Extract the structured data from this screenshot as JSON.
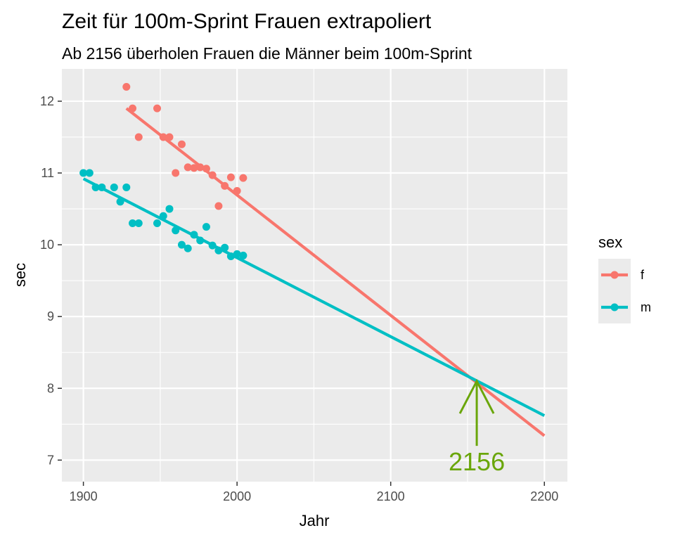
{
  "chart_data": {
    "type": "scatter",
    "title": "Zeit für 100m-Sprint Frauen extrapoliert",
    "subtitle": "Ab 2156 überholen Frauen die Männer beim 100m-Sprint",
    "xlabel": "Jahr",
    "ylabel": "sec",
    "xlim": [
      1886,
      2215
    ],
    "ylim": [
      6.7,
      12.45
    ],
    "x_ticks": [
      1900,
      2000,
      2100,
      2200
    ],
    "y_ticks": [
      7,
      8,
      9,
      10,
      11,
      12
    ],
    "grid": true,
    "legend": {
      "title": "sex",
      "position": "right"
    },
    "series": [
      {
        "name": "f",
        "color": "#F8766D",
        "points": [
          [
            1928,
            12.2
          ],
          [
            1932,
            11.9
          ],
          [
            1936,
            11.5
          ],
          [
            1948,
            11.9
          ],
          [
            1952,
            11.5
          ],
          [
            1956,
            11.5
          ],
          [
            1960,
            11.0
          ],
          [
            1964,
            11.4
          ],
          [
            1968,
            11.08
          ],
          [
            1972,
            11.07
          ],
          [
            1976,
            11.08
          ],
          [
            1980,
            11.06
          ],
          [
            1984,
            10.97
          ],
          [
            1988,
            10.54
          ],
          [
            1992,
            10.82
          ],
          [
            1996,
            10.94
          ],
          [
            2000,
            10.75
          ],
          [
            2004,
            10.93
          ]
        ],
        "fit": {
          "x": [
            1928,
            2200
          ],
          "y": [
            11.9,
            7.34
          ]
        }
      },
      {
        "name": "m",
        "color": "#00BFC4",
        "points": [
          [
            1900,
            11.0
          ],
          [
            1904,
            11.0
          ],
          [
            1908,
            10.8
          ],
          [
            1912,
            10.8
          ],
          [
            1920,
            10.8
          ],
          [
            1924,
            10.6
          ],
          [
            1928,
            10.8
          ],
          [
            1932,
            10.3
          ],
          [
            1936,
            10.3
          ],
          [
            1948,
            10.3
          ],
          [
            1952,
            10.4
          ],
          [
            1956,
            10.5
          ],
          [
            1960,
            10.2
          ],
          [
            1964,
            10.0
          ],
          [
            1968,
            9.95
          ],
          [
            1972,
            10.14
          ],
          [
            1976,
            10.06
          ],
          [
            1980,
            10.25
          ],
          [
            1984,
            9.99
          ],
          [
            1988,
            9.92
          ],
          [
            1992,
            9.96
          ],
          [
            1996,
            9.84
          ],
          [
            2000,
            9.87
          ],
          [
            2004,
            9.85
          ]
        ],
        "fit": {
          "x": [
            1900,
            2200
          ],
          "y": [
            10.92,
            7.62
          ]
        }
      }
    ],
    "annotation": {
      "text": "2156",
      "x": 2156,
      "y": 8.1,
      "color": "#6AA60A"
    }
  }
}
